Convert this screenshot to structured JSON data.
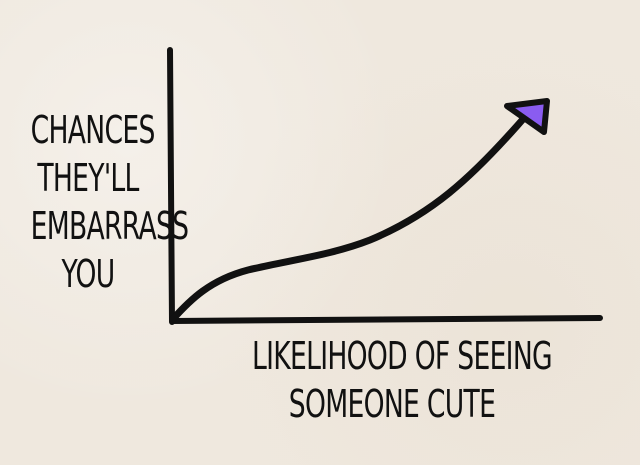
{
  "chart_data": {
    "type": "line",
    "y_label_lines": [
      "CHANCES",
      "THEY'LL",
      "EMBARRASS",
      "YOU"
    ],
    "x_label_lines": [
      "LIKELIHOOD OF SEEING",
      "SOMEONE CUTE"
    ],
    "series": [
      {
        "values": []
      }
    ],
    "grid": false,
    "legend": "none",
    "colors": {
      "paper": "#f3ece2",
      "ink": "#111111",
      "arrow_fill": "#8a5cf0"
    }
  }
}
